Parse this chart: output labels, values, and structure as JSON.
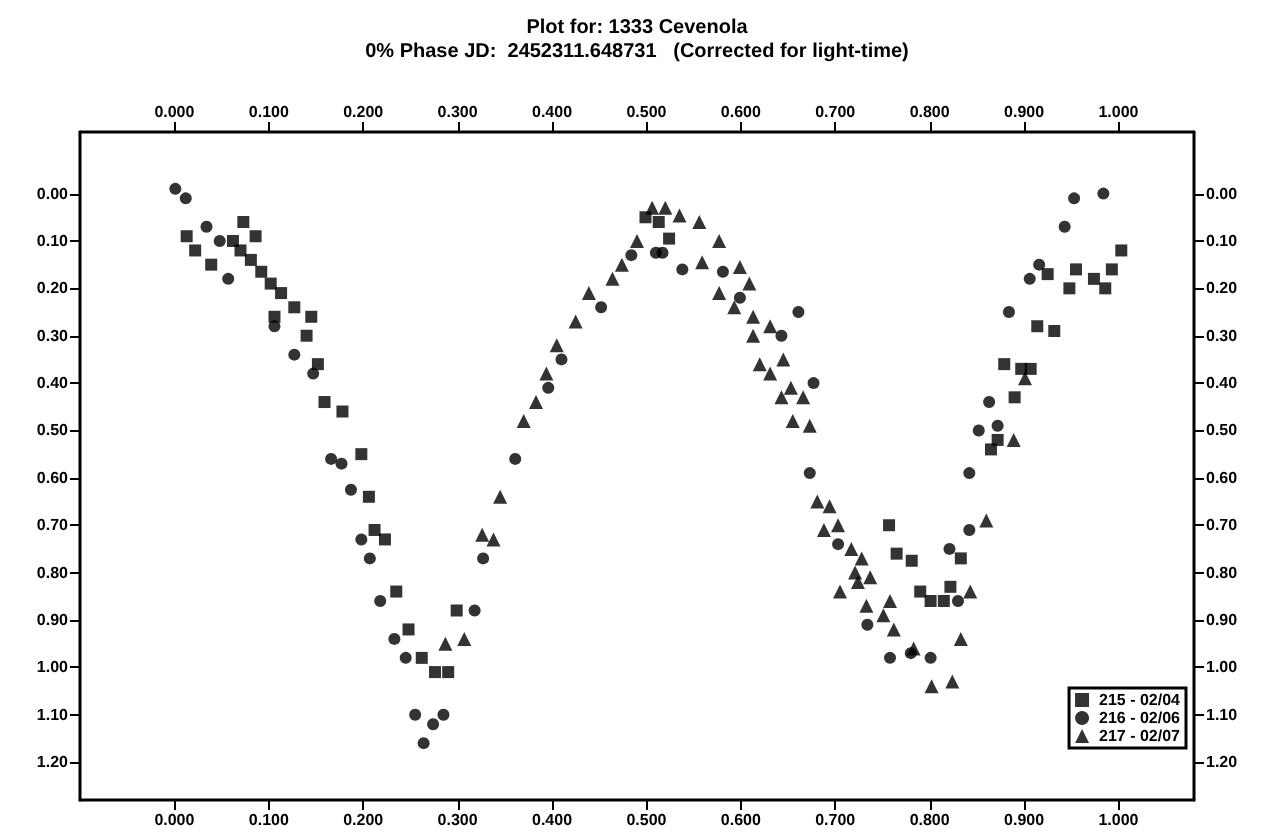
{
  "chart_data": {
    "type": "scatter",
    "title": "Plot for: 1333 Cevenola",
    "subtitle": "0% Phase JD:  2452311.648731   (Corrected for light-time)",
    "xlim": [
      -0.1,
      1.08
    ],
    "x2lim": [
      -0.1,
      1.08
    ],
    "ylim": [
      1.28,
      -0.13
    ],
    "y2lim": [
      1.28,
      -0.13
    ],
    "xticks": [
      {
        "value": 0,
        "label": "0.000"
      },
      {
        "value": 0.1,
        "label": "0.100"
      },
      {
        "value": 0.2,
        "label": "0.200"
      },
      {
        "value": 0.3,
        "label": "0.300"
      },
      {
        "value": 0.4,
        "label": "0.400"
      },
      {
        "value": 0.5,
        "label": "0.500"
      },
      {
        "value": 0.6,
        "label": "0.600"
      },
      {
        "value": 0.7,
        "label": "0.700"
      },
      {
        "value": 0.8,
        "label": "0.800"
      },
      {
        "value": 0.9,
        "label": "0.900"
      },
      {
        "value": 1,
        "label": "1.000"
      }
    ],
    "x2ticks": [
      {
        "value": 0,
        "label": "0.000"
      },
      {
        "value": 0.1,
        "label": "0.100"
      },
      {
        "value": 0.2,
        "label": "0.200"
      },
      {
        "value": 0.3,
        "label": "0.300"
      },
      {
        "value": 0.4,
        "label": "0.400"
      },
      {
        "value": 0.5,
        "label": "0.500"
      },
      {
        "value": 0.6,
        "label": "0.600"
      },
      {
        "value": 0.7,
        "label": "0.700"
      },
      {
        "value": 0.8,
        "label": "0.800"
      },
      {
        "value": 0.9,
        "label": "0.900"
      },
      {
        "value": 1,
        "label": "1.000"
      }
    ],
    "yticks": [
      {
        "value": 0,
        "label": "0.00"
      },
      {
        "value": 0.1,
        "label": "0.10"
      },
      {
        "value": 0.2,
        "label": "0.20"
      },
      {
        "value": 0.3,
        "label": "0.30"
      },
      {
        "value": 0.4,
        "label": "0.40"
      },
      {
        "value": 0.5,
        "label": "0.50"
      },
      {
        "value": 0.6,
        "label": "0.60"
      },
      {
        "value": 0.7,
        "label": "0.70"
      },
      {
        "value": 0.8,
        "label": "0.80"
      },
      {
        "value": 0.9,
        "label": "0.90"
      },
      {
        "value": 1,
        "label": "1.00"
      },
      {
        "value": 1.1,
        "label": "1.10"
      },
      {
        "value": 1.2,
        "label": "1.20"
      }
    ],
    "y2ticks": [
      {
        "value": 0,
        "label": "0.00"
      },
      {
        "value": 0.1,
        "label": "0.10"
      },
      {
        "value": 0.2,
        "label": "0.20"
      },
      {
        "value": 0.3,
        "label": "0.30"
      },
      {
        "value": 0.4,
        "label": "0.40"
      },
      {
        "value": 0.5,
        "label": "0.50"
      },
      {
        "value": 0.6,
        "label": "0.60"
      },
      {
        "value": 0.7,
        "label": "0.70"
      },
      {
        "value": 0.8,
        "label": "0.80"
      },
      {
        "value": 0.9,
        "label": "0.90"
      },
      {
        "value": 1,
        "label": "1.00"
      },
      {
        "value": 1.1,
        "label": "1.10"
      },
      {
        "value": 1.2,
        "label": "1.20"
      }
    ],
    "legend": "bottom right",
    "grid": false,
    "series": [
      {
        "name": "215 - 02/04",
        "color": "#000000",
        "marker": "square",
        "x": [
          0.013,
          0.022,
          0.039,
          0.062,
          0.07,
          0.073,
          0.081,
          0.086,
          0.092,
          0.102,
          0.106,
          0.113,
          0.127,
          0.14,
          0.145,
          0.152,
          0.159,
          0.178,
          0.198,
          0.206,
          0.212,
          0.223,
          0.235,
          0.248,
          0.262,
          0.276,
          0.29,
          0.299,
          0.499,
          0.513,
          0.524,
          0.757,
          0.765,
          0.781,
          0.79,
          0.801,
          0.815,
          0.822,
          0.833,
          0.865,
          0.872,
          0.879,
          0.89,
          0.897,
          0.907,
          0.914,
          0.925,
          0.932,
          0.948,
          0.955,
          0.974,
          0.986,
          0.993,
          1.003
        ],
        "values": [
          0.09,
          0.12,
          0.15,
          0.1,
          0.12,
          0.06,
          0.14,
          0.09,
          0.165,
          0.19,
          0.26,
          0.21,
          0.24,
          0.3,
          0.26,
          0.36,
          0.44,
          0.46,
          0.55,
          0.64,
          0.71,
          0.73,
          0.84,
          0.92,
          0.98,
          1.01,
          1.01,
          0.88,
          0.05,
          0.06,
          0.095,
          0.7,
          0.76,
          0.775,
          0.84,
          0.86,
          0.86,
          0.83,
          0.77,
          0.54,
          0.52,
          0.36,
          0.43,
          0.37,
          0.37,
          0.28,
          0.17,
          0.29,
          0.2,
          0.16,
          0.18,
          0.2,
          0.16,
          0.12
        ]
      },
      {
        "name": "216 - 02/06",
        "color": "#000000",
        "marker": "circle",
        "x": [
          0.001,
          0.012,
          0.034,
          0.048,
          0.057,
          0.106,
          0.127,
          0.147,
          0.166,
          0.177,
          0.187,
          0.198,
          0.207,
          0.218,
          0.233,
          0.245,
          0.255,
          0.264,
          0.274,
          0.285,
          0.318,
          0.327,
          0.361,
          0.396,
          0.41,
          0.452,
          0.484,
          0.51,
          0.517,
          0.538,
          0.581,
          0.599,
          0.643,
          0.661,
          0.673,
          0.677,
          0.703,
          0.734,
          0.758,
          0.78,
          0.801,
          0.821,
          0.83,
          0.842,
          0.842,
          0.852,
          0.863,
          0.872,
          0.884,
          0.906,
          0.916,
          0.943,
          0.953,
          0.984
        ],
        "values": [
          -0.01,
          0.01,
          0.07,
          0.1,
          0.18,
          0.28,
          0.34,
          0.38,
          0.56,
          0.57,
          0.625,
          0.73,
          0.77,
          0.86,
          0.94,
          0.98,
          1.1,
          1.16,
          1.12,
          1.1,
          0.88,
          0.77,
          0.56,
          0.41,
          0.35,
          0.24,
          0.13,
          0.125,
          0.125,
          0.16,
          0.165,
          0.22,
          0.3,
          0.25,
          0.59,
          0.4,
          0.74,
          0.91,
          0.98,
          0.97,
          0.98,
          0.75,
          0.86,
          0.71,
          0.59,
          0.5,
          0.44,
          0.49,
          0.25,
          0.18,
          0.15,
          0.07,
          0.01,
          0.0
        ]
      },
      {
        "name": "217 - 02/07",
        "color": "#000000",
        "marker": "triangle",
        "x": [
          0.287,
          0.307,
          0.326,
          0.338,
          0.345,
          0.37,
          0.383,
          0.394,
          0.405,
          0.425,
          0.439,
          0.464,
          0.474,
          0.49,
          0.506,
          0.52,
          0.535,
          0.556,
          0.577,
          0.559,
          0.599,
          0.609,
          0.577,
          0.593,
          0.613,
          0.631,
          0.613,
          0.645,
          0.62,
          0.631,
          0.643,
          0.653,
          0.666,
          0.655,
          0.673,
          0.681,
          0.694,
          0.688,
          0.703,
          0.717,
          0.728,
          0.721,
          0.737,
          0.705,
          0.724,
          0.733,
          0.758,
          0.751,
          0.762,
          0.783,
          0.802,
          0.824,
          0.833,
          0.843,
          0.86,
          0.889,
          0.901
        ],
        "values": [
          0.95,
          0.94,
          0.72,
          0.73,
          0.64,
          0.48,
          0.44,
          0.38,
          0.32,
          0.27,
          0.21,
          0.18,
          0.15,
          0.1,
          0.03,
          0.03,
          0.046,
          0.06,
          0.1,
          0.145,
          0.155,
          0.19,
          0.21,
          0.24,
          0.26,
          0.28,
          0.3,
          0.35,
          0.36,
          0.38,
          0.43,
          0.41,
          0.43,
          0.48,
          0.49,
          0.65,
          0.66,
          0.71,
          0.7,
          0.75,
          0.77,
          0.8,
          0.81,
          0.84,
          0.82,
          0.87,
          0.86,
          0.89,
          0.92,
          0.96,
          1.04,
          1.03,
          0.94,
          0.84,
          0.69,
          0.52,
          0.39
        ]
      }
    ]
  }
}
